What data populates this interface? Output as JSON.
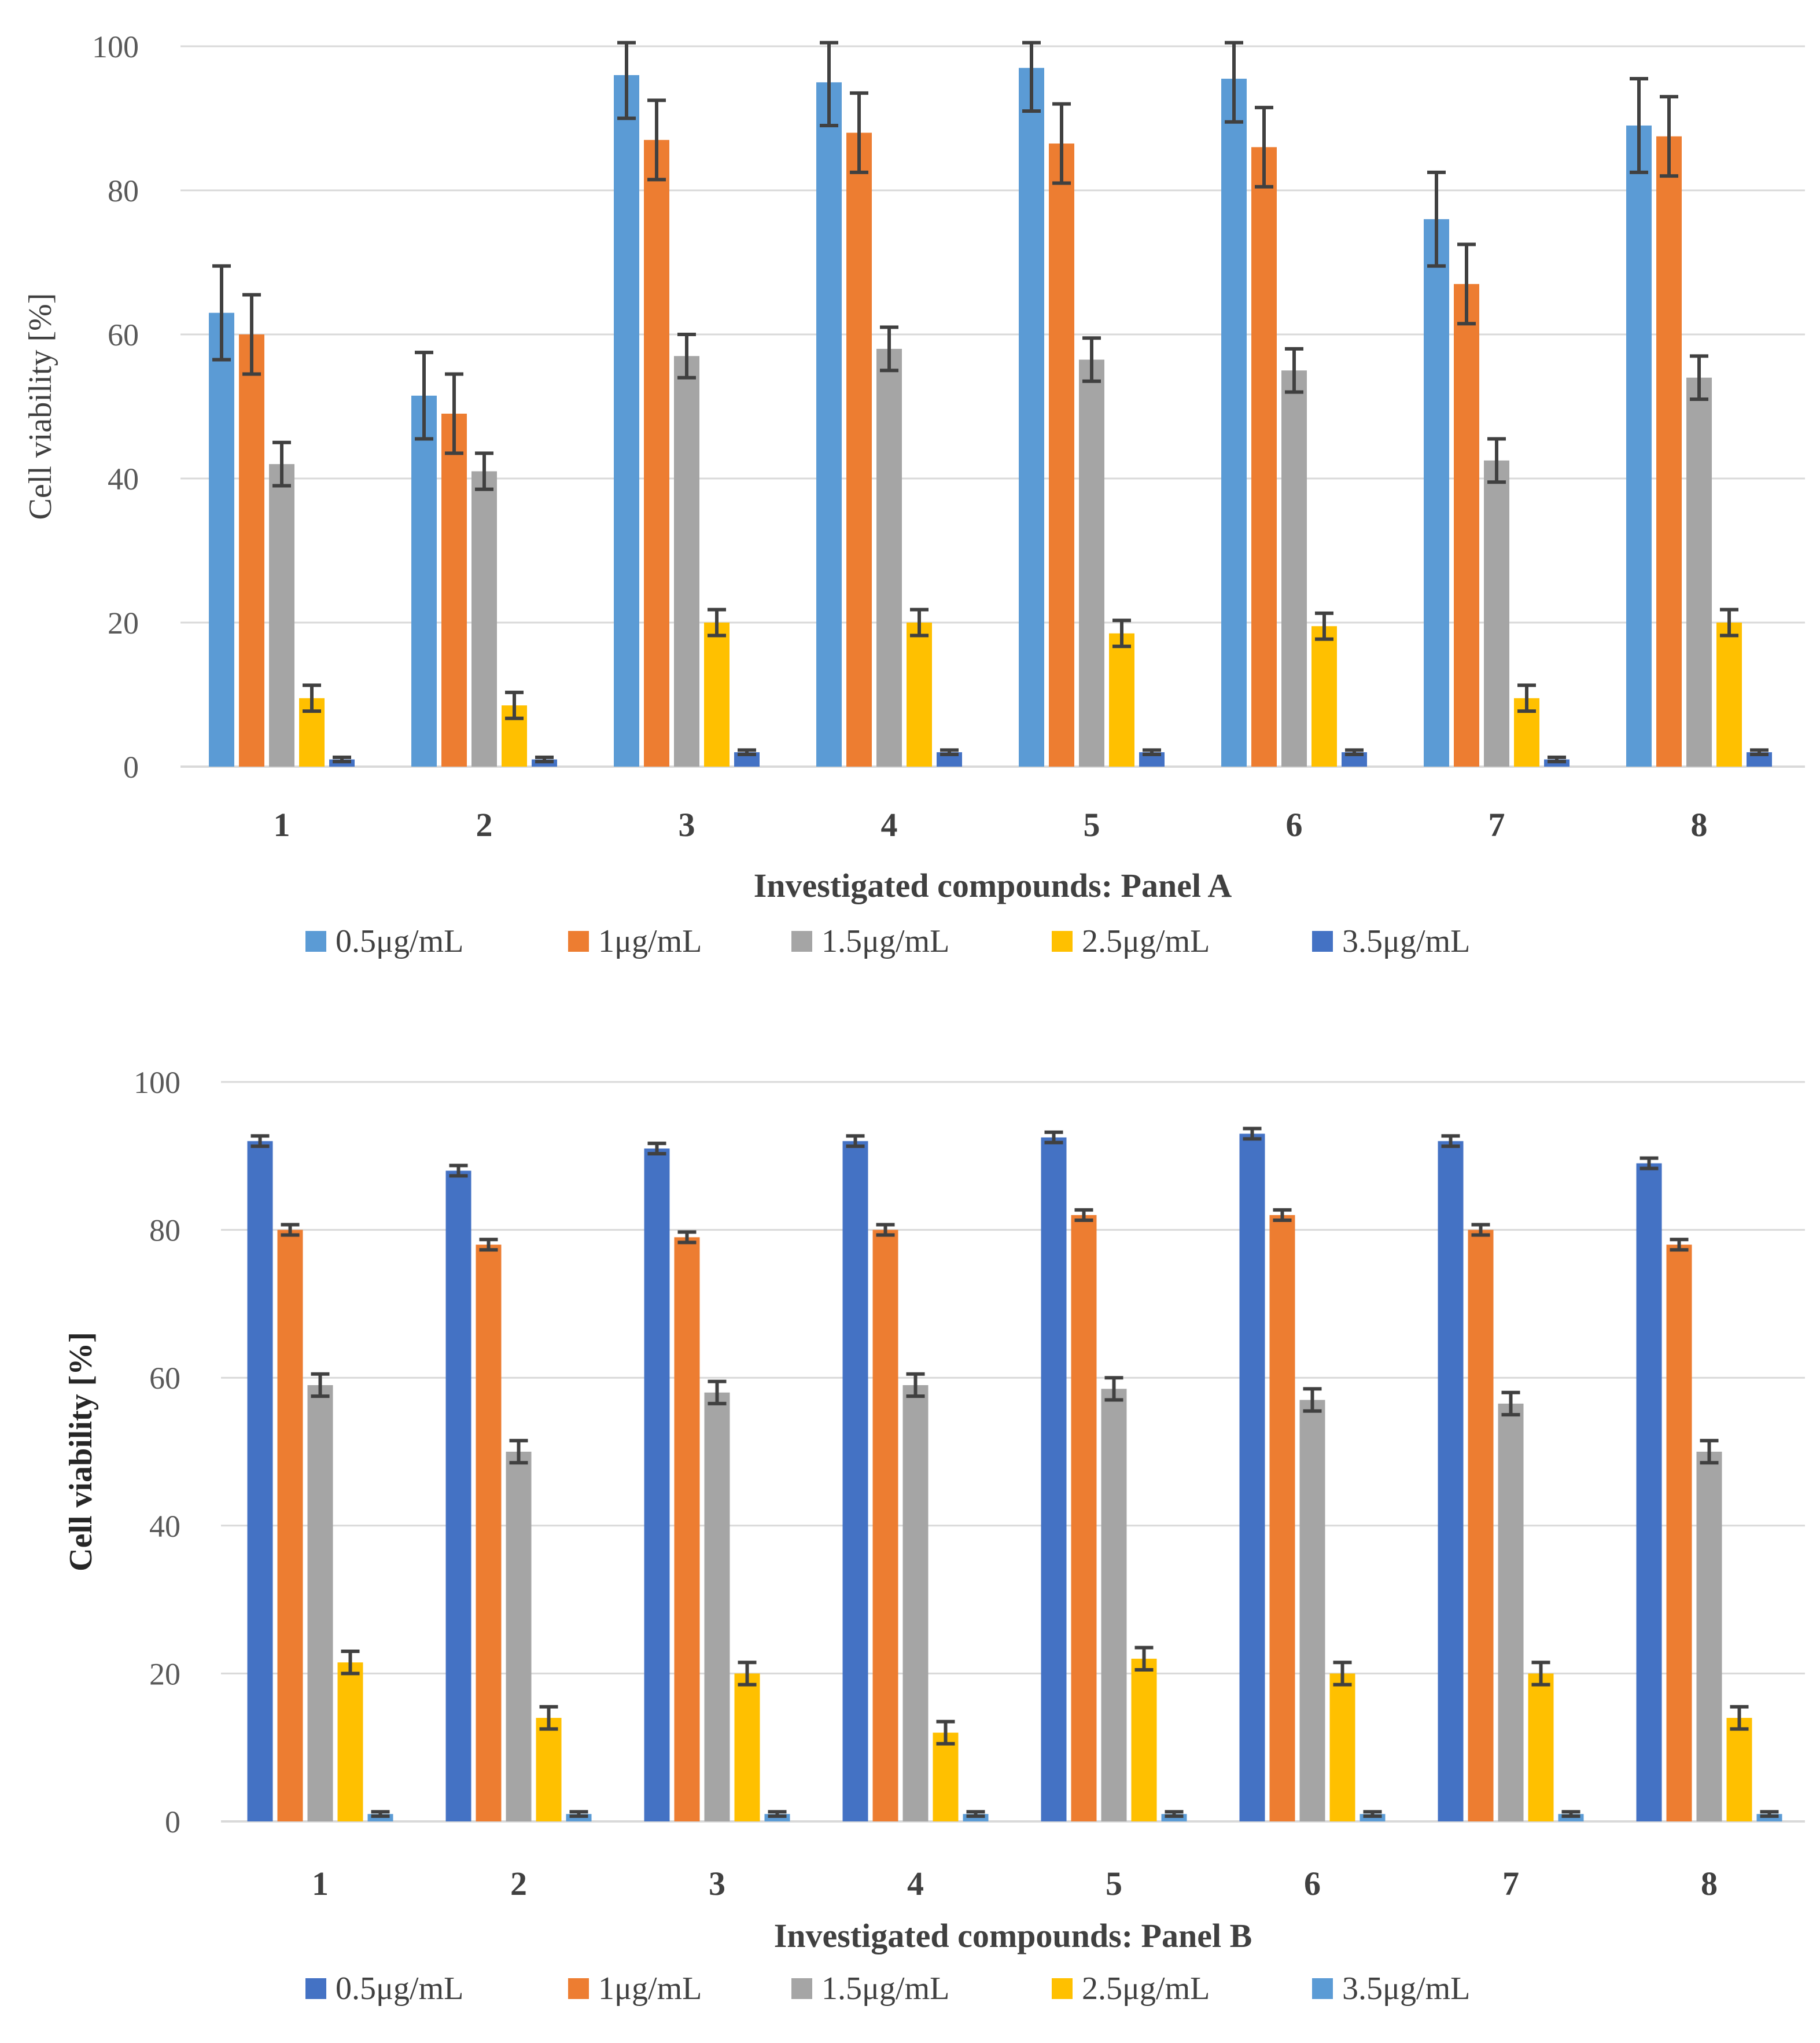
{
  "chart_data": [
    {
      "type": "bar",
      "panel": "A",
      "title": "",
      "xlabel": "Investigated compounds: Panel A",
      "ylabel": "Cell viability [%]",
      "ylim": [
        0,
        100
      ],
      "yticks": [
        "0",
        "20",
        "40",
        "60",
        "80",
        "100"
      ],
      "categories": [
        "1",
        "2",
        "3",
        "4",
        "5",
        "6",
        "7",
        "8"
      ],
      "legend_position": "bottom",
      "grid": true,
      "series": [
        {
          "name": "0.5μg/mL",
          "color": "#5b9bd5",
          "values": [
            63,
            51.5,
            96,
            95,
            97,
            95.5,
            76,
            89
          ],
          "errors": [
            6.5,
            6,
            6,
            6,
            6,
            6,
            6.5,
            6.5
          ]
        },
        {
          "name": "1μg/mL",
          "color": "#ed7d31",
          "values": [
            60,
            49,
            87,
            88,
            86.5,
            86,
            67,
            87.5
          ],
          "errors": [
            5.5,
            5.5,
            5.5,
            5.5,
            5.5,
            5.5,
            5.5,
            5.5
          ]
        },
        {
          "name": "1.5μg/mL",
          "color": "#a5a5a5",
          "values": [
            42,
            41,
            57,
            58,
            56.5,
            55,
            42.5,
            54
          ],
          "errors": [
            3,
            2.5,
            3,
            3,
            3,
            3,
            3,
            3
          ]
        },
        {
          "name": "2.5μg/mL",
          "color": "#ffc000",
          "values": [
            9.5,
            8.5,
            20,
            20,
            18.5,
            19.5,
            9.5,
            20
          ],
          "errors": [
            1.8,
            1.8,
            1.8,
            1.8,
            1.8,
            1.8,
            1.8,
            1.8
          ]
        },
        {
          "name": "3.5μg/mL",
          "color": "#4472c4",
          "values": [
            1,
            1,
            2,
            2,
            2,
            2,
            1,
            2
          ],
          "errors": [
            0.3,
            0.3,
            0.3,
            0.3,
            0.3,
            0.3,
            0.3,
            0.3
          ]
        }
      ]
    },
    {
      "type": "bar",
      "panel": "B",
      "title": "",
      "xlabel": "Investigated compounds: Panel B",
      "ylabel": "Cell viability [%]",
      "ylim": [
        0,
        100
      ],
      "yticks": [
        "0",
        "20",
        "40",
        "60",
        "80",
        "100"
      ],
      "categories": [
        "1",
        "2",
        "3",
        "4",
        "5",
        "6",
        "7",
        "8"
      ],
      "legend_position": "bottom",
      "grid": true,
      "series": [
        {
          "name": "0.5μg/mL",
          "color": "#4472c4",
          "values": [
            92,
            88,
            91,
            92,
            92.5,
            93,
            92,
            89
          ],
          "errors": [
            0.7,
            0.7,
            0.7,
            0.7,
            0.7,
            0.7,
            0.7,
            0.7
          ]
        },
        {
          "name": "1μg/mL",
          "color": "#ed7d31",
          "values": [
            80,
            78,
            79,
            80,
            82,
            82,
            80,
            78
          ],
          "errors": [
            0.7,
            0.7,
            0.7,
            0.7,
            0.7,
            0.7,
            0.7,
            0.7
          ]
        },
        {
          "name": "1.5μg/mL",
          "color": "#a5a5a5",
          "values": [
            59,
            50,
            58,
            59,
            58.5,
            57,
            56.5,
            50
          ],
          "errors": [
            1.5,
            1.5,
            1.5,
            1.5,
            1.5,
            1.5,
            1.5,
            1.5
          ]
        },
        {
          "name": "2.5μg/mL",
          "color": "#ffc000",
          "values": [
            21.5,
            14,
            20,
            12,
            22,
            20,
            20,
            14
          ],
          "errors": [
            1.5,
            1.5,
            1.5,
            1.5,
            1.5,
            1.5,
            1.5,
            1.5
          ]
        },
        {
          "name": "3.5μg/mL",
          "color": "#5b9bd5",
          "values": [
            1,
            1,
            1,
            1,
            1,
            1,
            1,
            1
          ],
          "errors": [
            0.3,
            0.3,
            0.3,
            0.3,
            0.3,
            0.3,
            0.3,
            0.3
          ]
        }
      ]
    }
  ]
}
